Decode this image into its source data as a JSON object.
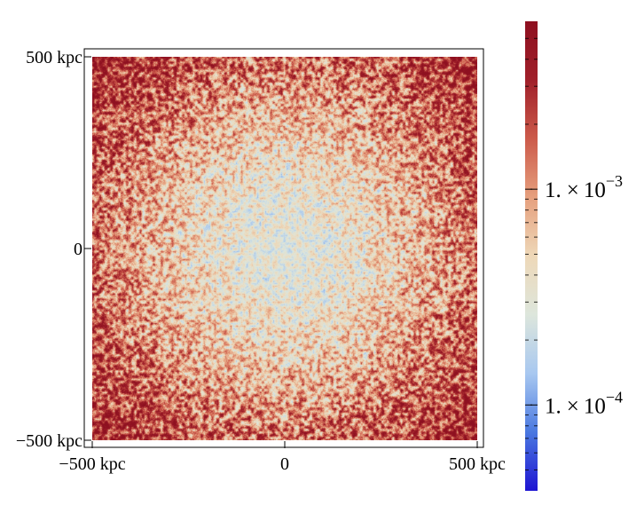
{
  "chart_data": {
    "type": "heatmap",
    "title": "",
    "xlabel": "",
    "ylabel": "",
    "x_range_kpc": [
      -500,
      500
    ],
    "y_range_kpc": [
      -500,
      500
    ],
    "x_ticks": [
      {
        "value": -500,
        "label": "−500 kpc"
      },
      {
        "value": 0,
        "label": "0"
      },
      {
        "value": 500,
        "label": "500 kpc"
      }
    ],
    "y_ticks": [
      {
        "value": 500,
        "label": "500 kpc"
      },
      {
        "value": 0,
        "label": "0"
      },
      {
        "value": -500,
        "label": "−500 kpc"
      }
    ],
    "colorbar": {
      "scale": "log",
      "range": [
        4e-05,
        0.006
      ],
      "labeled_ticks": [
        {
          "value": 0.001,
          "mantissa": "1.",
          "exponent": "-3"
        },
        {
          "value": 0.0001,
          "mantissa": "1.",
          "exponent": "-4"
        }
      ],
      "minor_ticks": [
        5e-05,
        6e-05,
        7e-05,
        8e-05,
        9e-05,
        0.0002,
        0.0003,
        0.0004,
        0.0005,
        0.0006,
        0.0007,
        0.0008,
        0.0009,
        0.002,
        0.003,
        0.004,
        0.005
      ],
      "colormap": [
        "#1e14d2",
        "#4a78e0",
        "#a8c8f0",
        "#dde6dc",
        "#eed8b8",
        "#e6a07e",
        "#cc5a4a",
        "#a0202a",
        "#8e1020"
      ]
    },
    "field_description": {
      "center_value": 0.00028,
      "edge_value": 0.0015,
      "corner_value": 0.0035,
      "structure": "fine-grained fluctuations, amplitude increasing with radius"
    },
    "grid": false,
    "legend": "colorbar-right"
  }
}
